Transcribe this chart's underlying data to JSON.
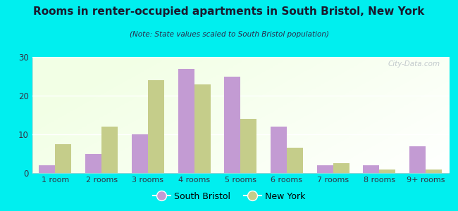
{
  "title": "Rooms in renter-occupied apartments in South Bristol, New York",
  "subtitle": "(Note: State values scaled to South Bristol population)",
  "categories": [
    "1 room",
    "2 rooms",
    "3 rooms",
    "4 rooms",
    "5 rooms",
    "6 rooms",
    "7 rooms",
    "8 rooms",
    "9+ rooms"
  ],
  "south_bristol": [
    2,
    5,
    10,
    27,
    25,
    12,
    2,
    2,
    7
  ],
  "new_york": [
    7.5,
    12,
    24,
    23,
    14,
    6.5,
    2.5,
    1,
    1
  ],
  "south_bristol_color": "#c39bd3",
  "new_york_color": "#c5cd8a",
  "background_outer": "#00efef",
  "ylim": [
    0,
    30
  ],
  "yticks": [
    0,
    10,
    20,
    30
  ],
  "bar_width": 0.35,
  "watermark": "City-Data.com",
  "legend_south_bristol": "South Bristol",
  "legend_new_york": "New York",
  "title_color": "#1a1a2e",
  "subtitle_color": "#2a2a4a",
  "tick_color": "#333344"
}
